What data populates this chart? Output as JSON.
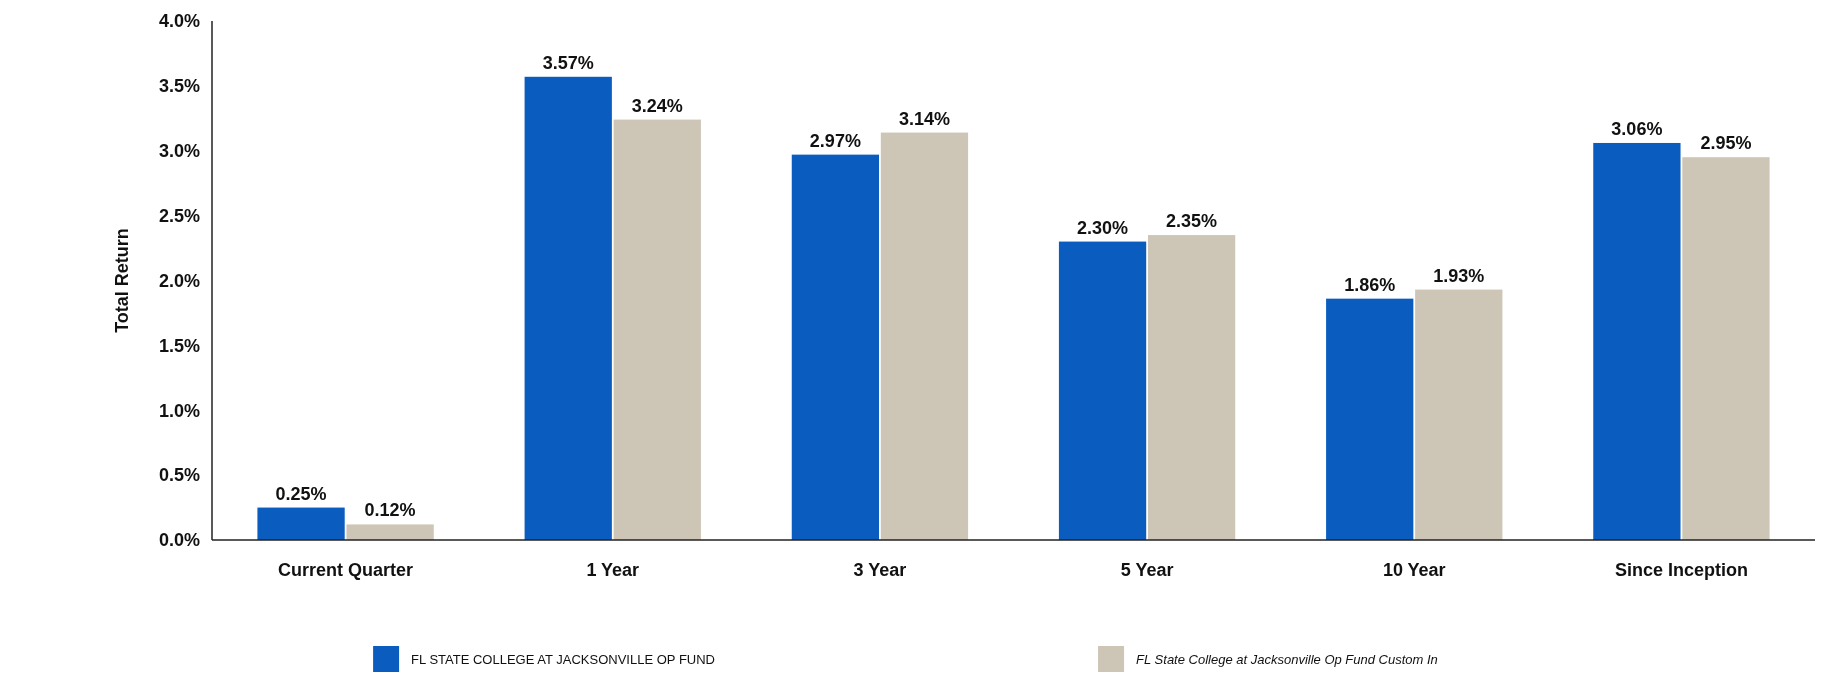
{
  "chart_data": {
    "type": "bar",
    "ylabel": "Total Return",
    "categories": [
      "Current Quarter",
      "1 Year",
      "3 Year",
      "5 Year",
      "10 Year",
      "Since Inception"
    ],
    "series": [
      {
        "name": "FL STATE COLLEGE AT JACKSONVILLE OP FUND",
        "color": "#0a5cbe",
        "values": [
          0.25,
          3.57,
          2.97,
          2.3,
          1.86,
          3.06
        ],
        "value_labels": [
          "0.25%",
          "3.57%",
          "2.97%",
          "2.30%",
          "1.86%",
          "3.06%"
        ]
      },
      {
        "name": "FL State College at Jacksonville Op Fund Custom In",
        "color": "#cdc5b5",
        "values": [
          0.12,
          3.24,
          3.14,
          2.35,
          1.93,
          2.95
        ],
        "value_labels": [
          "0.12%",
          "3.24%",
          "3.14%",
          "2.35%",
          "1.93%",
          "2.95%"
        ]
      }
    ],
    "ylim": [
      0,
      4
    ],
    "yticks": [
      {
        "value": 0,
        "label": "0.0%"
      },
      {
        "value": 0.5,
        "label": "0.5%"
      },
      {
        "value": 1,
        "label": "1.0%"
      },
      {
        "value": 1.5,
        "label": "1.5%"
      },
      {
        "value": 2,
        "label": "2.0%"
      },
      {
        "value": 2.5,
        "label": "2.5%"
      },
      {
        "value": 3,
        "label": "3.0%"
      },
      {
        "value": 3.5,
        "label": "3.5%"
      },
      {
        "value": 4,
        "label": "4.0%"
      }
    ],
    "legend": "bottom"
  }
}
